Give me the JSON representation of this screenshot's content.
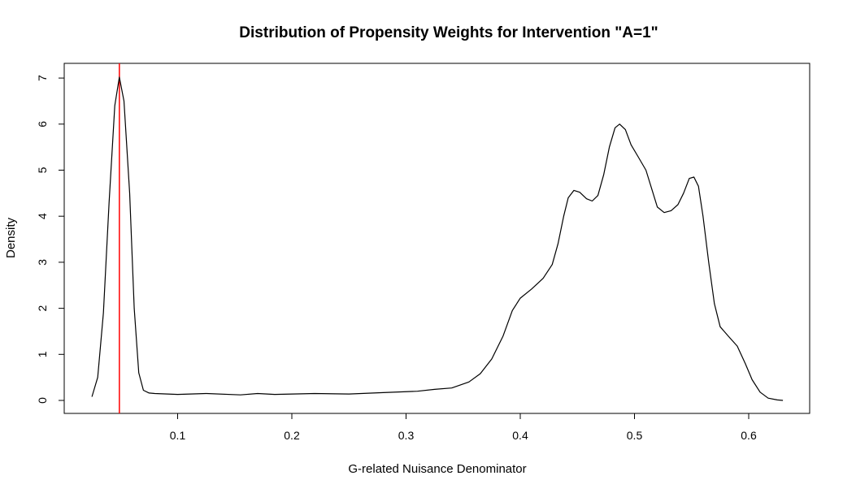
{
  "chart_data": {
    "type": "line",
    "title": "Distribution of Propensity Weights for Intervention \"A=1\"",
    "xlabel": "G-related Nuisance Denominator",
    "ylabel": "Density",
    "xlim": [
      0.0,
      0.65
    ],
    "ylim": [
      0,
      7.3
    ],
    "xticks": [
      "0.1",
      "0.2",
      "0.3",
      "0.4",
      "0.5",
      "0.6"
    ],
    "yticks": [
      "0",
      "1",
      "2",
      "3",
      "4",
      "5",
      "6",
      "7"
    ],
    "grid": false,
    "legend": "none",
    "series": [
      {
        "color": "#000000",
        "points": [
          [
            0.025,
            0.08
          ],
          [
            0.03,
            0.5
          ],
          [
            0.035,
            1.9
          ],
          [
            0.04,
            4.3
          ],
          [
            0.045,
            6.4
          ],
          [
            0.049,
            7.02
          ],
          [
            0.053,
            6.5
          ],
          [
            0.058,
            4.5
          ],
          [
            0.062,
            2.0
          ],
          [
            0.066,
            0.6
          ],
          [
            0.07,
            0.22
          ],
          [
            0.075,
            0.16
          ],
          [
            0.08,
            0.15
          ],
          [
            0.1,
            0.13
          ],
          [
            0.125,
            0.15
          ],
          [
            0.155,
            0.12
          ],
          [
            0.17,
            0.15
          ],
          [
            0.185,
            0.13
          ],
          [
            0.22,
            0.15
          ],
          [
            0.25,
            0.14
          ],
          [
            0.28,
            0.17
          ],
          [
            0.31,
            0.2
          ],
          [
            0.325,
            0.24
          ],
          [
            0.34,
            0.27
          ],
          [
            0.355,
            0.4
          ],
          [
            0.365,
            0.58
          ],
          [
            0.375,
            0.9
          ],
          [
            0.385,
            1.4
          ],
          [
            0.393,
            1.95
          ],
          [
            0.4,
            2.22
          ],
          [
            0.41,
            2.42
          ],
          [
            0.42,
            2.65
          ],
          [
            0.428,
            2.95
          ],
          [
            0.433,
            3.4
          ],
          [
            0.438,
            4.0
          ],
          [
            0.442,
            4.4
          ],
          [
            0.447,
            4.56
          ],
          [
            0.452,
            4.52
          ],
          [
            0.458,
            4.38
          ],
          [
            0.463,
            4.33
          ],
          [
            0.468,
            4.45
          ],
          [
            0.473,
            4.9
          ],
          [
            0.478,
            5.5
          ],
          [
            0.483,
            5.92
          ],
          [
            0.487,
            6.0
          ],
          [
            0.492,
            5.88
          ],
          [
            0.497,
            5.55
          ],
          [
            0.503,
            5.3
          ],
          [
            0.51,
            5.0
          ],
          [
            0.515,
            4.6
          ],
          [
            0.52,
            4.2
          ],
          [
            0.526,
            4.08
          ],
          [
            0.532,
            4.12
          ],
          [
            0.538,
            4.25
          ],
          [
            0.543,
            4.5
          ],
          [
            0.548,
            4.82
          ],
          [
            0.552,
            4.85
          ],
          [
            0.556,
            4.65
          ],
          [
            0.56,
            4.0
          ],
          [
            0.565,
            3.0
          ],
          [
            0.57,
            2.1
          ],
          [
            0.575,
            1.6
          ],
          [
            0.582,
            1.4
          ],
          [
            0.59,
            1.18
          ],
          [
            0.597,
            0.8
          ],
          [
            0.603,
            0.45
          ],
          [
            0.61,
            0.18
          ],
          [
            0.617,
            0.05
          ],
          [
            0.625,
            0.01
          ],
          [
            0.63,
            0.0
          ]
        ]
      }
    ],
    "reference_line": {
      "orientation": "vertical",
      "x": 0.049,
      "color": "#ff0000"
    }
  }
}
